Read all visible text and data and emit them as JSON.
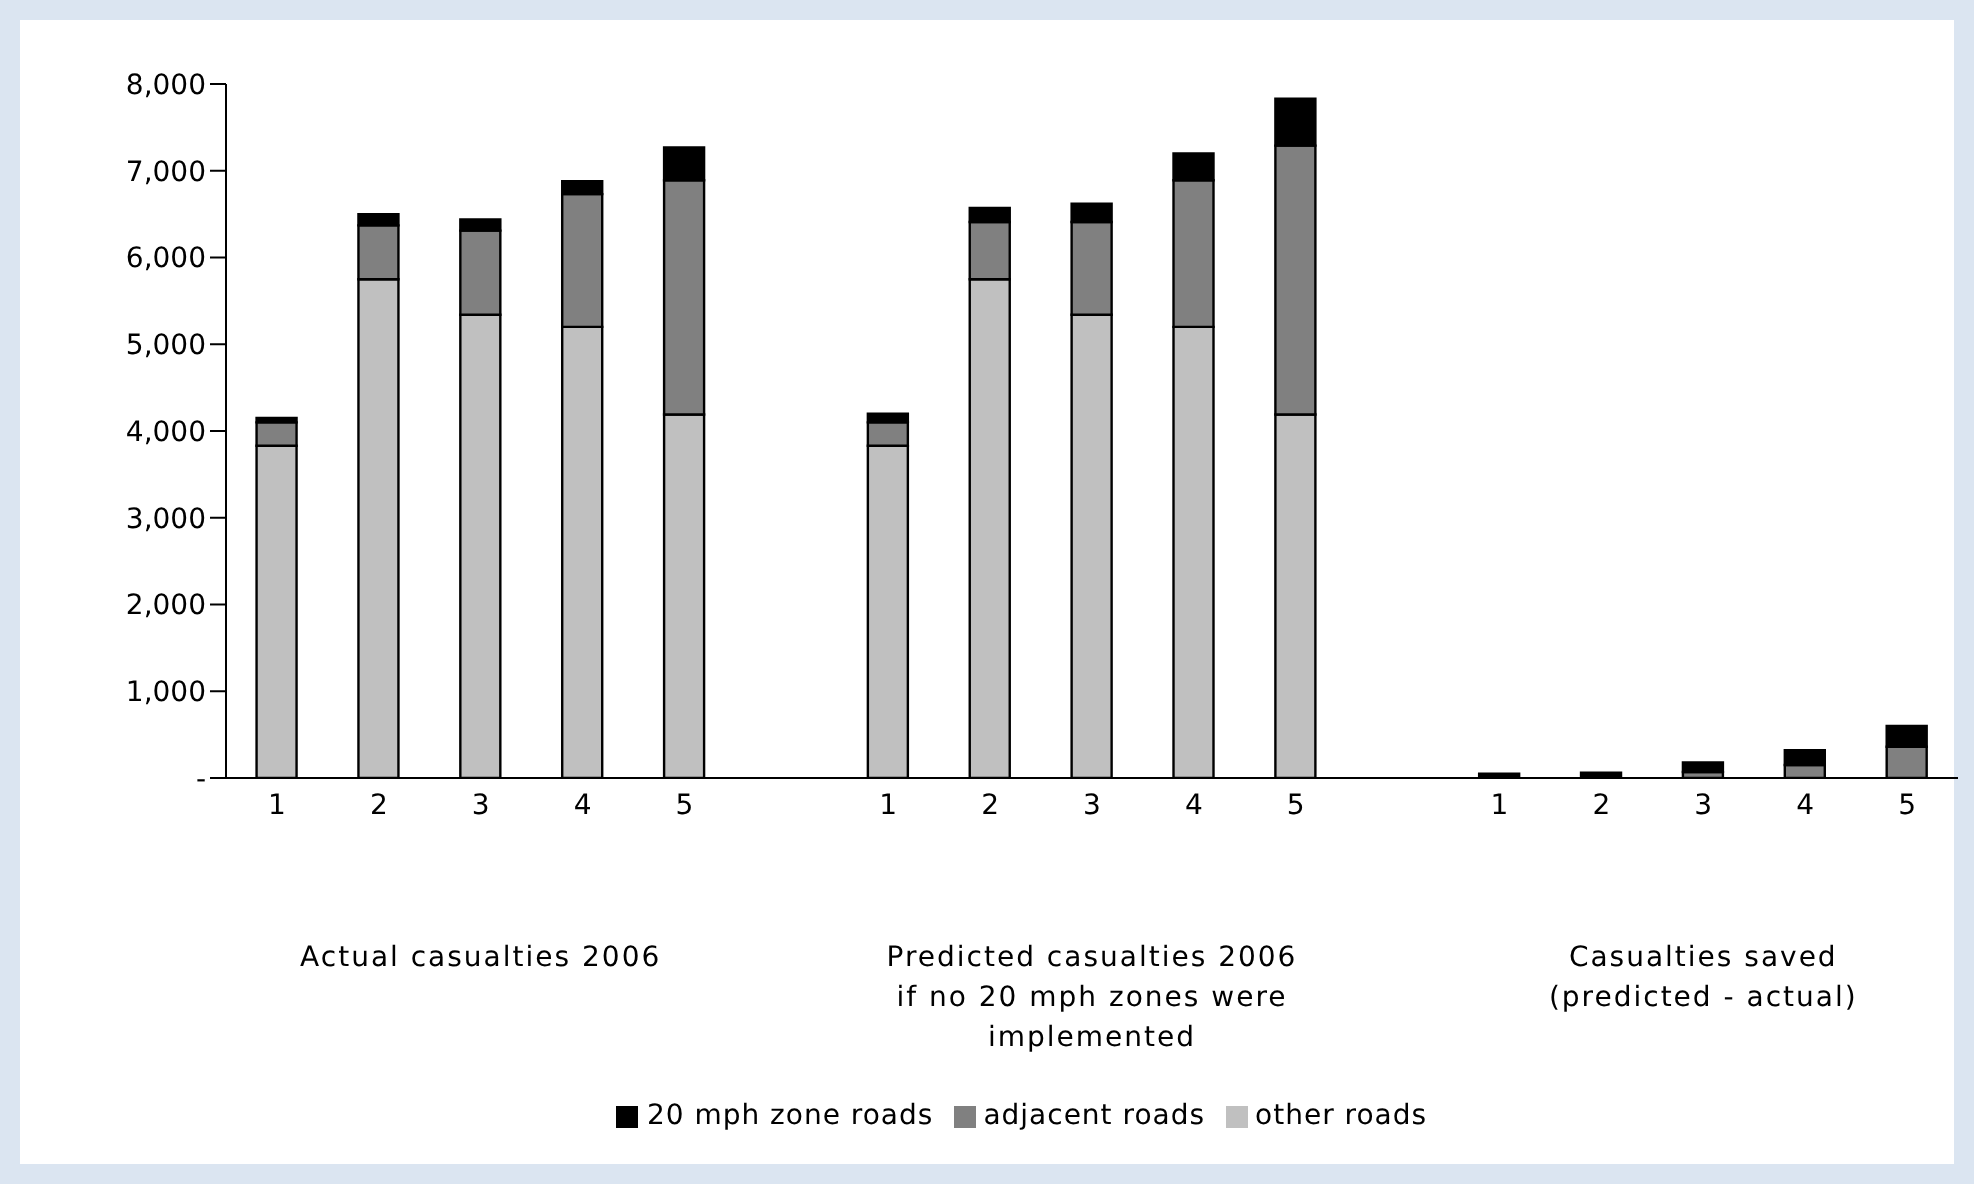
{
  "chart_data": {
    "type": "bar",
    "stacked": true,
    "categories": [
      "1",
      "2",
      "3",
      "4",
      "5",
      null,
      "1",
      "2",
      "3",
      "4",
      "5",
      null,
      "1",
      "2",
      "3",
      "4",
      "5"
    ],
    "series": [
      {
        "name": "other roads",
        "color": "#c0c0c0",
        "values": [
          3830,
          5750,
          5340,
          5200,
          4190,
          null,
          3830,
          5750,
          5340,
          5200,
          4190,
          null,
          0,
          0,
          0,
          0,
          0
        ]
      },
      {
        "name": "adjacent roads",
        "color": "#808080",
        "values": [
          270,
          620,
          970,
          1530,
          2700,
          null,
          270,
          660,
          1070,
          1690,
          3100,
          null,
          0,
          0,
          70,
          150,
          360
        ]
      },
      {
        "name": "20 mph zone roads",
        "color": "#000000",
        "values": [
          50,
          130,
          130,
          150,
          380,
          null,
          100,
          160,
          210,
          310,
          540,
          null,
          50,
          60,
          110,
          170,
          240
        ]
      }
    ],
    "ylim": [
      0,
      8000
    ],
    "yticks": [
      {
        "value": 0,
        "label": "-"
      },
      {
        "value": 1000,
        "label": "1,000"
      },
      {
        "value": 2000,
        "label": "2,000"
      },
      {
        "value": 3000,
        "label": "3,000"
      },
      {
        "value": 4000,
        "label": "4,000"
      },
      {
        "value": 5000,
        "label": "5,000"
      },
      {
        "value": 6000,
        "label": "6,000"
      },
      {
        "value": 7000,
        "label": "7,000"
      },
      {
        "value": 8000,
        "label": "8,000"
      }
    ],
    "annotations": [
      "Actual casualties 2006",
      "Predicted casualties 2006 if no 20 mph zones were implemented",
      "Casualties saved (predicted - actual)"
    ],
    "grid": false,
    "legend": "bottom"
  }
}
